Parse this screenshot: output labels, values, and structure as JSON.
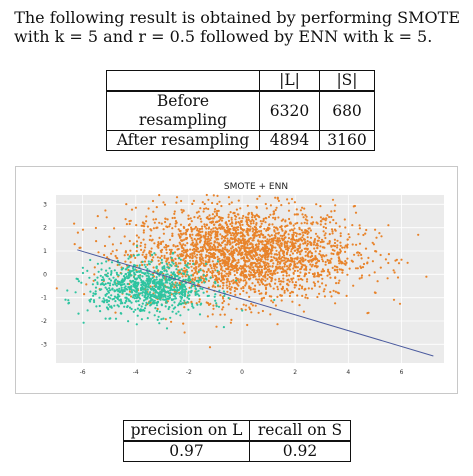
{
  "intro": {
    "line1": "The following result is obtained by performing SMOTE",
    "line2": "with k = 5 and r = 0.5 followed by ENN with k = 5."
  },
  "table1": {
    "headers": [
      "",
      "|L|",
      "|S|"
    ],
    "rows": [
      {
        "label": "Before resampling",
        "L": "6320",
        "S": "680"
      },
      {
        "label": "After resampling",
        "L": "4894",
        "S": "3160"
      }
    ]
  },
  "chart_data": {
    "type": "scatter",
    "title": "SMOTE + ENN",
    "xticks": [
      "-6",
      "-4",
      "-2",
      "0",
      "2",
      "4",
      "6"
    ],
    "yticks": [
      "3",
      "2",
      "1",
      "0",
      "-1",
      "-2",
      "-3"
    ],
    "xlim": [
      -7,
      7.6
    ],
    "ylim": [
      -3.8,
      3.4
    ],
    "grid": true,
    "series": [
      {
        "name": "",
        "color": "#e8832a",
        "center": [
          0,
          0.9
        ],
        "spread": [
          2.1,
          1.0
        ],
        "count": 4894
      },
      {
        "name": "",
        "color": "#2ec4a0",
        "center": [
          -3.5,
          -0.6
        ],
        "spread": [
          1.1,
          0.55
        ],
        "count": 3160
      }
    ],
    "decision_line": {
      "from": [
        -6.2,
        1.05
      ],
      "to": [
        7.2,
        -3.5
      ],
      "color": "#4a5a9e"
    }
  },
  "table2": {
    "headers": [
      "precision on L",
      "recall on S"
    ],
    "values": [
      "0.97",
      "0.92"
    ]
  }
}
